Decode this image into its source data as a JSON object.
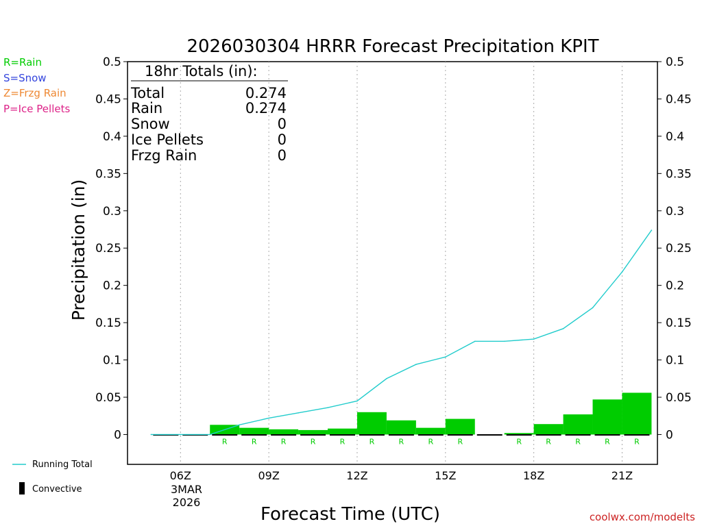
{
  "colors": {
    "rain": "#00cc00",
    "snow": "#3344dd",
    "frzg": "#ee8833",
    "ice": "#dd2288",
    "running_total": "#22cccc",
    "text": "#000000",
    "credit": "#cc2222"
  },
  "legend_left": [
    {
      "label": "R=Rain",
      "color": "#00cc00"
    },
    {
      "label": "S=Snow",
      "color": "#3344dd"
    },
    {
      "label": "Z=Frzg Rain",
      "color": "#ee8833"
    },
    {
      "label": "P=Ice Pellets",
      "color": "#dd2288"
    }
  ],
  "legend_bottom": {
    "running_total": "Running Total",
    "convective": "Convective"
  },
  "totals_box": {
    "header": "18hr Totals (in):",
    "rows": [
      {
        "label": "Total",
        "value": "0.274"
      },
      {
        "label": "Rain",
        "value": "0.274"
      },
      {
        "label": "Snow",
        "value": "0"
      },
      {
        "label": "Ice Pellets",
        "value": "0"
      },
      {
        "label": "Frzg Rain",
        "value": "0"
      }
    ]
  },
  "credit": "coolwx.com/modelts",
  "date_label": {
    "day": "3MAR",
    "year": "2026"
  },
  "chart_data": {
    "type": "bar",
    "title": "2026030304 HRRR Forecast Precipitation KPIT",
    "xlabel": "Forecast Time (UTC)",
    "ylabel": "Precipitation (in)",
    "ylim": [
      -0.04,
      0.5
    ],
    "yticks": [
      0,
      0.05,
      0.1,
      0.15,
      0.2,
      0.25,
      0.3,
      0.35,
      0.4,
      0.45,
      0.5
    ],
    "ytick_labels": [
      "0",
      "0.05",
      "0.1",
      "0.15",
      "0.2",
      "0.25",
      "0.3",
      "0.35",
      "0.4",
      "0.45",
      "0.5"
    ],
    "xlim": [
      4.2,
      22.2
    ],
    "xticks": [
      {
        "hour": 6,
        "label": "06Z"
      },
      {
        "hour": 9,
        "label": "09Z"
      },
      {
        "hour": 12,
        "label": "12Z"
      },
      {
        "hour": 15,
        "label": "15Z"
      },
      {
        "hour": 18,
        "label": "18Z"
      },
      {
        "hour": 21,
        "label": "21Z"
      }
    ],
    "hourly_precip": {
      "hours": [
        5,
        6,
        7,
        8,
        9,
        10,
        11,
        12,
        13,
        14,
        15,
        16,
        17,
        18,
        19,
        20,
        21,
        22
      ],
      "values": [
        0,
        0,
        0,
        0.013,
        0.009,
        0.007,
        0.006,
        0.008,
        0.03,
        0.019,
        0.009,
        0.021,
        0,
        0.002,
        0.014,
        0.027,
        0.047,
        0.056
      ],
      "ptype": [
        "",
        "",
        "",
        "R",
        "R",
        "R",
        "R",
        "R",
        "R",
        "R",
        "R",
        "R",
        "",
        "R",
        "R",
        "R",
        "R",
        "R"
      ]
    },
    "running_total": {
      "hours": [
        5,
        6,
        7,
        8,
        9,
        10,
        11,
        12,
        13,
        14,
        15,
        16,
        17,
        18,
        19,
        20,
        21,
        22
      ],
      "values": [
        0,
        0,
        0,
        0.013,
        0.022,
        0.029,
        0.036,
        0.045,
        0.075,
        0.094,
        0.104,
        0.125,
        0.125,
        0.128,
        0.142,
        0.17,
        0.218,
        0.274
      ]
    }
  }
}
